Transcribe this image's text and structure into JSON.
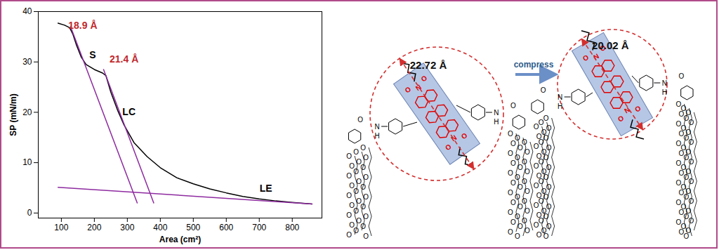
{
  "chart_data": {
    "type": "line",
    "xlabel": "Area (cm²)",
    "ylabel": "SP (mN/m)",
    "xlim": [
      30,
      890
    ],
    "ylim": [
      -1,
      40
    ],
    "xticks": [
      100,
      200,
      300,
      400,
      500,
      600,
      700,
      800
    ],
    "yticks": [
      0,
      10,
      20,
      30,
      40
    ],
    "series": [
      {
        "color": "#000000",
        "x": [
          90,
          110,
          125,
          135,
          145,
          160,
          175,
          200,
          225,
          235,
          250,
          270,
          290,
          320,
          360,
          400,
          450,
          500,
          550,
          600,
          650,
          700,
          750,
          800,
          860
        ],
        "values": [
          37.7,
          37.3,
          36.8,
          35.5,
          33.5,
          31,
          29.5,
          28.5,
          27.8,
          27.3,
          24,
          20.5,
          17.5,
          14,
          11.2,
          9,
          7,
          5.8,
          4.8,
          4,
          3.3,
          2.8,
          2.4,
          2.1,
          1.8
        ]
      },
      {
        "color": "#8e2ba0",
        "x": [
          128,
          330
        ],
        "values": [
          37,
          2
        ]
      },
      {
        "color": "#8e2ba0",
        "x": [
          228,
          380
        ],
        "values": [
          28.5,
          2
        ]
      },
      {
        "color": "#8e2ba0",
        "x": [
          90,
          860
        ],
        "values": [
          5.1,
          1.8
        ]
      }
    ],
    "annotations": [
      {
        "text": "18.9 Å",
        "x": 165,
        "y": 37.2,
        "color": "#c0282d"
      },
      {
        "text": "S",
        "x": 195,
        "y": 31.3,
        "color": "#000000"
      },
      {
        "text": "21.4 Å",
        "x": 290,
        "y": 30.5,
        "color": "#c0282d"
      },
      {
        "text": "LC",
        "x": 305,
        "y": 20,
        "color": "#000000"
      },
      {
        "text": "LE",
        "x": 720,
        "y": 4.8,
        "color": "#000000"
      }
    ]
  },
  "diagram": {
    "before_label": "22.72 Å",
    "arrow_label": "compress",
    "after_label": "20.02 Å",
    "atoms": {
      "oxygen": "O",
      "nitrogen": "N",
      "hydrogen": "H"
    }
  }
}
